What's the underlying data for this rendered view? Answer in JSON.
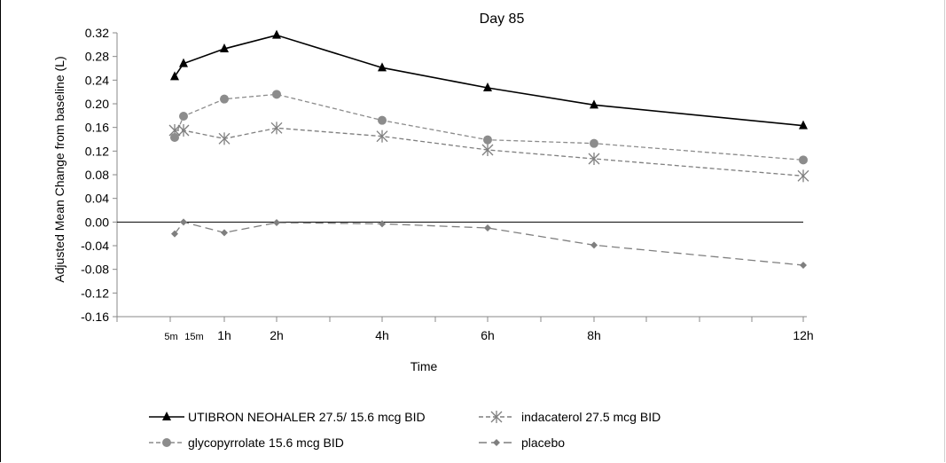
{
  "chart_data": {
    "type": "line",
    "title": "Day 85",
    "xlabel": "Time",
    "ylabel": "Adjusted Mean Change from baseline (L)",
    "ylim": [
      -0.16,
      0.32
    ],
    "yticks": [
      "0.32",
      "0.28",
      "0.24",
      "0.20",
      "0.16",
      "0.12",
      "0.08",
      "0.04",
      "0.00",
      "-0.04",
      "-0.08",
      "-0.12",
      "-0.16"
    ],
    "x_hours": [
      0.083,
      0.25,
      1,
      2,
      4,
      6,
      8,
      12
    ],
    "xtick_labels": [
      {
        "x": 0.083,
        "label": "5m"
      },
      {
        "x": 0.25,
        "label": "15m"
      },
      {
        "x": 1,
        "label": "1h"
      },
      {
        "x": 2,
        "label": "2h"
      },
      {
        "x": 4,
        "label": "4h"
      },
      {
        "x": 6,
        "label": "6h"
      },
      {
        "x": 8,
        "label": "8h"
      },
      {
        "x": 12,
        "label": "12h"
      }
    ],
    "series": [
      {
        "name": "UTIBRON NEOHALER 27.5/ 15.6 mcg BID",
        "color": "#000000",
        "style": "solid",
        "marker": "triangle",
        "values": [
          0.246,
          0.268,
          0.293,
          0.316,
          0.261,
          0.227,
          0.198,
          0.163
        ]
      },
      {
        "name": "indacaterol 27.5 mcg BID",
        "color": "#7f7f7f",
        "style": "dashed",
        "marker": "asterisk",
        "values": [
          0.155,
          0.155,
          0.141,
          0.159,
          0.145,
          0.122,
          0.107,
          0.078
        ]
      },
      {
        "name": "glycopyrrolate 15.6 mcg BID",
        "color": "#8c8c8c",
        "style": "dashed",
        "marker": "circle",
        "values": [
          0.143,
          0.179,
          0.208,
          0.216,
          0.172,
          0.139,
          0.133,
          0.105
        ]
      },
      {
        "name": "placebo",
        "color": "#7f7f7f",
        "style": "longdash",
        "marker": "diamond",
        "values": [
          -0.02,
          0.0,
          -0.018,
          -0.001,
          -0.003,
          -0.01,
          -0.039,
          -0.073
        ]
      }
    ],
    "legend_position": "bottom"
  }
}
